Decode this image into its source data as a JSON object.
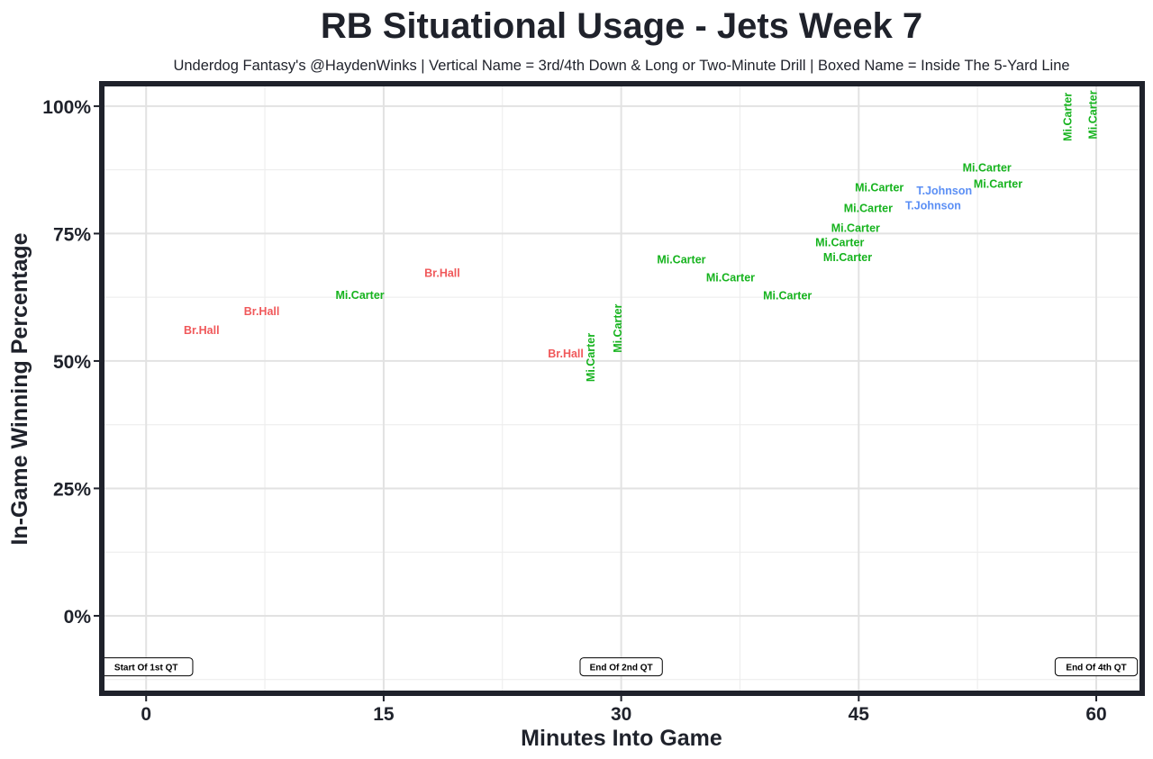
{
  "chart_data": {
    "type": "scatter",
    "title": "RB Situational Usage - Jets Week 7",
    "subtitle": "Underdog Fantasy's @HaydenWinks | Vertical Name = 3rd/4th Down & Long or Two-Minute Drill | Boxed Name = Inside The 5-Yard Line",
    "xlabel": "Minutes Into Game",
    "ylabel": "In-Game Winning Percentage",
    "xlim": [
      -2.8,
      62.9
    ],
    "ylim": [
      -15.2,
      104.4
    ],
    "x_ticks": [
      0,
      15,
      30,
      45,
      60
    ],
    "x_tick_labels": [
      "0",
      "15",
      "30",
      "45",
      "60"
    ],
    "y_ticks": [
      0,
      25,
      50,
      75,
      100
    ],
    "y_tick_labels": [
      "0%",
      "25%",
      "50%",
      "75%",
      "100%"
    ],
    "grid": true,
    "colors": {
      "Br.Hall": "#f0585a",
      "Mi.Carter": "#16b31e",
      "T.Johnson": "#5b8ff5"
    },
    "points": [
      {
        "label": "Br.Hall",
        "x": 3.5,
        "y": 56.0,
        "vertical": false
      },
      {
        "label": "Br.Hall",
        "x": 7.3,
        "y": 59.7,
        "vertical": false
      },
      {
        "label": "Mi.Carter",
        "x": 13.5,
        "y": 62.9,
        "vertical": false
      },
      {
        "label": "Br.Hall",
        "x": 18.7,
        "y": 67.2,
        "vertical": false
      },
      {
        "label": "Br.Hall",
        "x": 26.5,
        "y": 51.4,
        "vertical": false
      },
      {
        "label": "Mi.Carter",
        "x": 28.1,
        "y": 50.7,
        "vertical": true
      },
      {
        "label": "Mi.Carter",
        "x": 29.8,
        "y": 56.4,
        "vertical": true
      },
      {
        "label": "Mi.Carter",
        "x": 33.8,
        "y": 69.9,
        "vertical": false
      },
      {
        "label": "Mi.Carter",
        "x": 36.9,
        "y": 68.8,
        "vertical": false
      },
      {
        "label": "Mi.Carter",
        "x": 40.5,
        "y": 62.8,
        "vertical": false
      },
      {
        "label": "Mi.Carter",
        "x": 43.8,
        "y": 73.2,
        "vertical": false
      },
      {
        "label": "Mi.Carter",
        "x": 44.3,
        "y": 72.8,
        "vertical": false
      },
      {
        "label": "Mi.Carter",
        "x": 44.8,
        "y": 73.6,
        "vertical": false
      },
      {
        "label": "Mi.Carter",
        "x": 45.6,
        "y": 77.5,
        "vertical": false
      },
      {
        "label": "Mi.Carter",
        "x": 46.3,
        "y": 76.6,
        "vertical": false
      },
      {
        "label": "T.Johnson",
        "x": 49.7,
        "y": 80.5,
        "vertical": false
      },
      {
        "label": "T.Johnson",
        "x": 50.4,
        "y": 80.9,
        "vertical": false
      },
      {
        "label": "Mi.Carter",
        "x": 53.1,
        "y": 87.9,
        "vertical": false
      },
      {
        "label": "Mi.Carter",
        "x": 53.8,
        "y": 87.2,
        "vertical": false
      },
      {
        "label": "Mi.Carter",
        "x": 58.2,
        "y": 97.9,
        "vertical": true
      },
      {
        "label": "Mi.Carter",
        "x": 58.2,
        "y": 98.3,
        "vertical": true
      }
    ],
    "annotations": [
      {
        "text": "Start Of 1st QT",
        "x": 0,
        "y": -10
      },
      {
        "text": "End Of 2nd QT",
        "x": 30,
        "y": -10
      },
      {
        "text": "End Of 4th QT",
        "x": 60,
        "y": -10
      }
    ]
  }
}
